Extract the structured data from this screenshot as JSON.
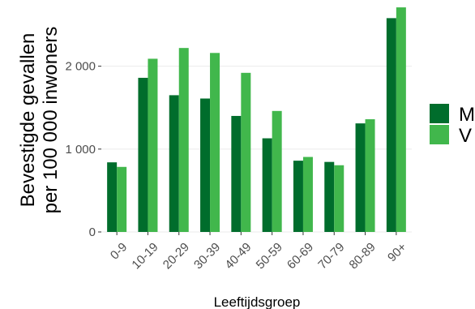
{
  "chart_data": {
    "type": "bar",
    "xlabel": "Leeftijdsgroep",
    "ylabel_lines": [
      "Bevestigde gevallen",
      "per 100 000 inwoners"
    ],
    "categories": [
      "0-9",
      "10-19",
      "20-29",
      "30-39",
      "40-49",
      "50-59",
      "60-69",
      "70-79",
      "80-89",
      "90+"
    ],
    "yticks": [
      0,
      1000,
      2000
    ],
    "ytick_labels": [
      "0",
      "1 000",
      "2 000"
    ],
    "ylim": [
      0,
      2750
    ],
    "grid": true,
    "legend_position": "right",
    "series": [
      {
        "name": "M",
        "color": "#006d2c",
        "values": [
          840,
          1860,
          1650,
          1610,
          1400,
          1130,
          860,
          845,
          1310,
          2580
        ]
      },
      {
        "name": "V",
        "color": "#41b74c",
        "values": [
          785,
          2090,
          2220,
          2160,
          1920,
          1460,
          905,
          805,
          1360,
          2710
        ]
      }
    ]
  }
}
